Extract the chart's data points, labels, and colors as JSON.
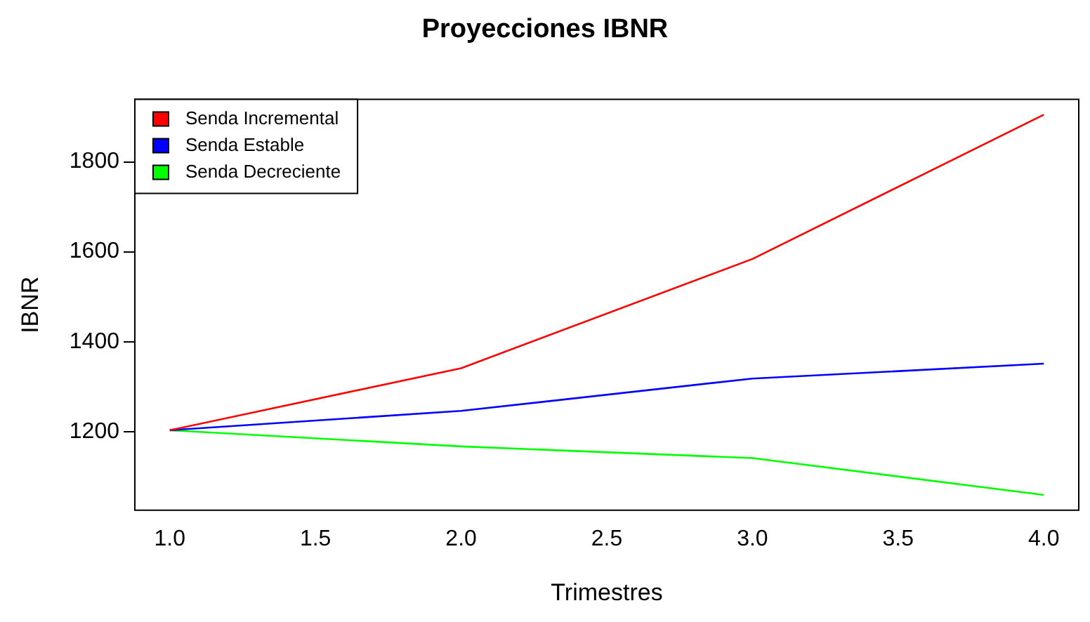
{
  "chart_data": {
    "type": "line",
    "title": "Proyecciones IBNR",
    "xlabel": "Trimestres",
    "ylabel": "IBNR",
    "x": [
      1,
      2,
      3,
      4
    ],
    "series": [
      {
        "name": "Senda Incremental",
        "color": "#ff0000",
        "values": [
          1203,
          1341,
          1584,
          1905
        ]
      },
      {
        "name": "Senda Estable",
        "color": "#0000ff",
        "values": [
          1203,
          1246,
          1318,
          1351
        ]
      },
      {
        "name": "Senda Decreciente",
        "color": "#00ff00",
        "values": [
          1203,
          1167,
          1141,
          1059
        ]
      }
    ],
    "xlim": [
      0.88,
      4.12
    ],
    "ylim": [
      1025,
      1939
    ],
    "xticks": [
      {
        "value": 1,
        "label": "1.0"
      },
      {
        "value": 1.5,
        "label": "1.5"
      },
      {
        "value": 2,
        "label": "2.0"
      },
      {
        "value": 2.5,
        "label": "2.5"
      },
      {
        "value": 3,
        "label": "3.0"
      },
      {
        "value": 3.5,
        "label": "3.5"
      },
      {
        "value": 4,
        "label": "4.0"
      }
    ],
    "yticks": [
      1200,
      1400,
      1600,
      1800
    ],
    "grid": false,
    "legend": "top left",
    "marker": "none",
    "line_style": "solid"
  }
}
